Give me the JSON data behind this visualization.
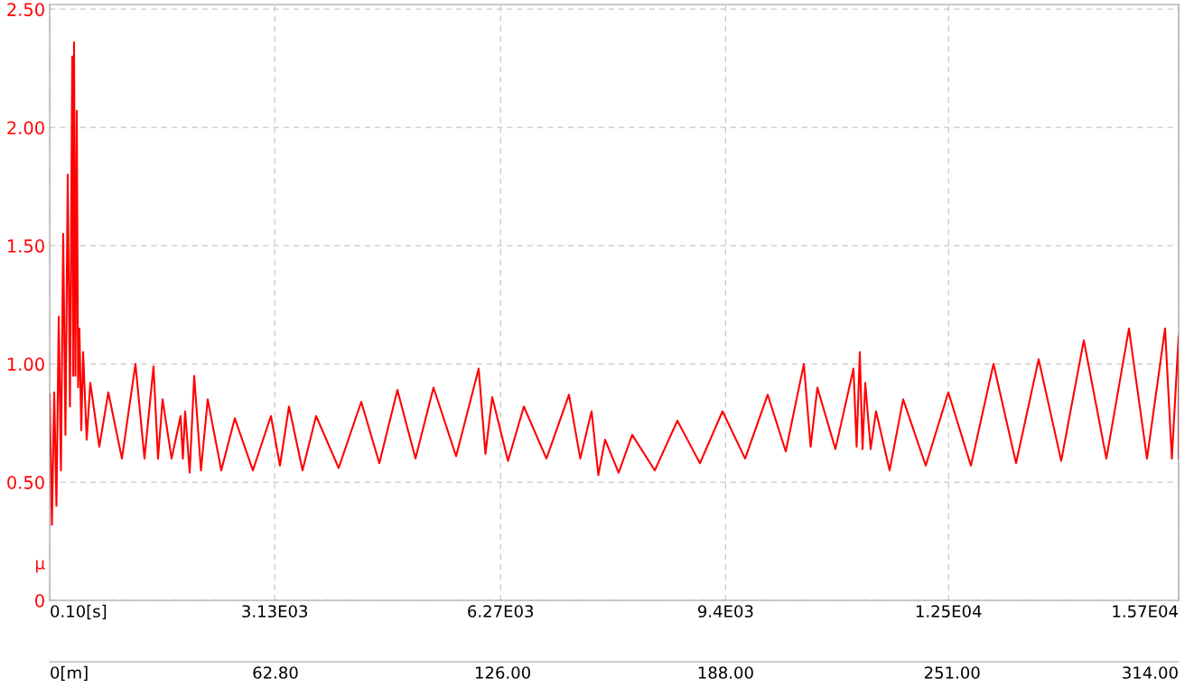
{
  "chart_data": {
    "type": "line",
    "ylabel": "μ",
    "series": [
      {
        "color": "#ff0000",
        "x": [
          0.1,
          31.5,
          63,
          94.5,
          126,
          157,
          188,
          219.5,
          251,
          282.5,
          314,
          326.5,
          339,
          358,
          377,
          395.5,
          414,
          439.5,
          465,
          515,
          565,
          690.5,
          816,
          1004.5,
          1193,
          1318.5,
          1444,
          1507,
          1570,
          1695.5,
          1821,
          1852.5,
          1884,
          1947,
          2010,
          2104,
          2198,
          2386.5,
          2575,
          2826,
          3077,
          3202.5,
          3328,
          3516.5,
          3705,
          4019,
          4333,
          4584.5,
          4836,
          5087,
          5338,
          5652,
          5966,
          6060,
          6154,
          6374,
          6594,
          6908,
          7222,
          7379,
          7536,
          7630,
          7724,
          7912.5,
          8101,
          8415,
          8729,
          9043,
          9357,
          9671,
          9985,
          10236.5,
          10488,
          10582,
          10676,
          10927,
          11178,
          11222,
          11266,
          11304,
          11342,
          11417,
          11492,
          11680.5,
          11869,
          12183,
          12497,
          12811,
          13125,
          13439,
          13753,
          14067,
          14381,
          14695,
          15009,
          15260,
          15511,
          15605.5,
          15700,
          15700
        ],
        "values": [
          0.87,
          0.32,
          0.88,
          0.4,
          1.2,
          0.55,
          1.55,
          0.7,
          1.8,
          0.82,
          2.3,
          0.95,
          2.36,
          0.95,
          2.07,
          0.9,
          1.15,
          0.72,
          1.05,
          0.68,
          0.92,
          0.65,
          0.88,
          0.6,
          1.0,
          0.6,
          0.99,
          0.6,
          0.85,
          0.6,
          0.78,
          0.6,
          0.8,
          0.54,
          0.95,
          0.55,
          0.85,
          0.55,
          0.77,
          0.55,
          0.78,
          0.57,
          0.82,
          0.55,
          0.78,
          0.56,
          0.84,
          0.58,
          0.89,
          0.6,
          0.9,
          0.61,
          0.98,
          0.62,
          0.86,
          0.59,
          0.82,
          0.6,
          0.87,
          0.6,
          0.8,
          0.53,
          0.68,
          0.54,
          0.7,
          0.55,
          0.76,
          0.58,
          0.8,
          0.6,
          0.87,
          0.63,
          1.0,
          0.65,
          0.9,
          0.64,
          0.98,
          0.65,
          1.05,
          0.64,
          0.92,
          0.64,
          0.8,
          0.55,
          0.85,
          0.57,
          0.88,
          0.57,
          1.0,
          0.58,
          1.02,
          0.59,
          1.1,
          0.6,
          1.15,
          0.6,
          1.15,
          0.6,
          1.12,
          0.6
        ]
      }
    ],
    "xlim": [
      0.1,
      15700
    ],
    "xticks": [
      {
        "value": 0.1,
        "label": "0.10[s]"
      },
      {
        "value": 3130,
        "label": "3.13E03"
      },
      {
        "value": 6270,
        "label": "6.27E03"
      },
      {
        "value": 9400,
        "label": "9.4E03"
      },
      {
        "value": 12500,
        "label": "1.25E04"
      },
      {
        "value": 15700,
        "label": "1.57E04"
      }
    ],
    "x2lim": [
      0,
      314
    ],
    "x2ticks": [
      {
        "value": 0,
        "label": "0[m]"
      },
      {
        "value": 62.8,
        "label": "62.80"
      },
      {
        "value": 126,
        "label": "126.00"
      },
      {
        "value": 188,
        "label": "188.00"
      },
      {
        "value": 251,
        "label": "251.00"
      },
      {
        "value": 314,
        "label": "314.00"
      }
    ],
    "ylim": [
      0,
      2.52
    ],
    "yticks": [
      0,
      {
        "value": 0.5,
        "label": "0.50"
      },
      {
        "value": 1.0,
        "label": "1.00"
      },
      {
        "value": 1.5,
        "label": "1.50"
      },
      {
        "value": 2.0,
        "label": "2.00"
      },
      {
        "value": 2.5,
        "label": "2.50"
      }
    ],
    "grid": true,
    "legend": false
  }
}
